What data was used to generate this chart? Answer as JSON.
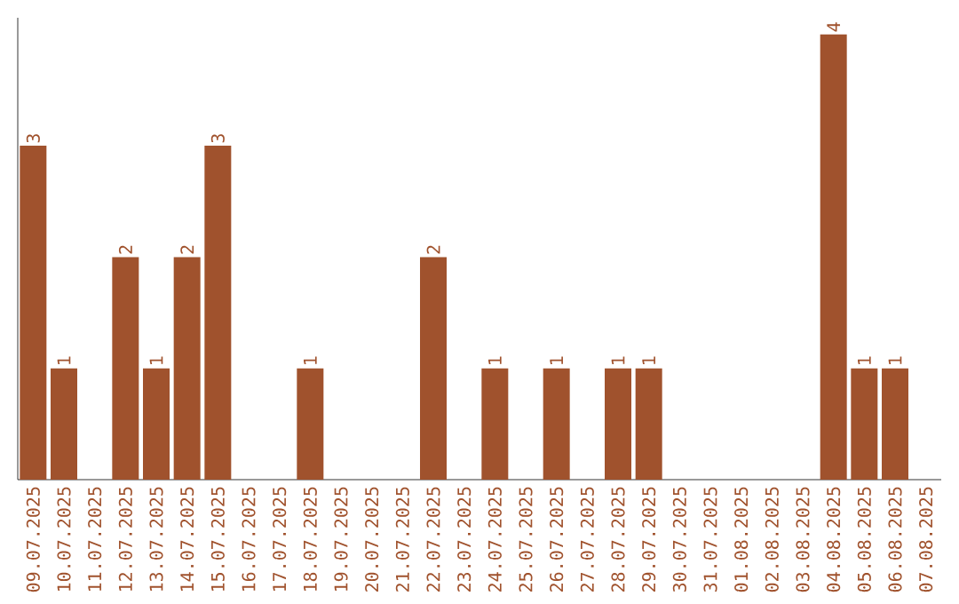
{
  "chart_data": {
    "type": "bar",
    "categories": [
      "09.07.2025",
      "10.07.2025",
      "11.07.2025",
      "12.07.2025",
      "13.07.2025",
      "14.07.2025",
      "15.07.2025",
      "16.07.2025",
      "17.07.2025",
      "18.07.2025",
      "19.07.2025",
      "20.07.2025",
      "21.07.2025",
      "22.07.2025",
      "23.07.2025",
      "24.07.2025",
      "25.07.2025",
      "26.07.2025",
      "27.07.2025",
      "28.07.2025",
      "29.07.2025",
      "30.07.2025",
      "31.07.2025",
      "01.08.2025",
      "02.08.2025",
      "03.08.2025",
      "04.08.2025",
      "05.08.2025",
      "06.08.2025",
      "07.08.2025"
    ],
    "values": [
      3,
      1,
      0,
      2,
      1,
      2,
      3,
      0,
      0,
      1,
      0,
      0,
      0,
      2,
      0,
      1,
      0,
      1,
      0,
      1,
      1,
      0,
      0,
      0,
      0,
      0,
      4,
      1,
      1,
      0
    ],
    "value_labels": [
      "3",
      "1",
      null,
      "2",
      "1",
      "2",
      "3",
      null,
      null,
      "1",
      null,
      null,
      null,
      "2",
      null,
      "1",
      null,
      "1",
      null,
      "1",
      "1",
      null,
      null,
      null,
      null,
      null,
      "4",
      "1",
      "1",
      null
    ],
    "color": "#a0522d",
    "ylim": [
      0,
      4.15
    ],
    "tick_labels": "x",
    "grid": false
  }
}
